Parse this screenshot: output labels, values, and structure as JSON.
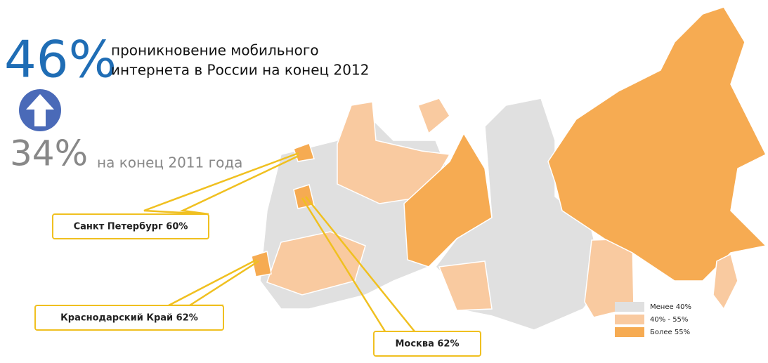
{
  "headline": {
    "value": "46%",
    "lines": [
      "проникновение мобильного",
      "интернета в России на конец 2012"
    ]
  },
  "previous": {
    "value": "34%",
    "text": "на конец 2011 года"
  },
  "callouts": [
    "Санкт Петербург 60%",
    "Краснодарский Край 62%",
    "Москва 62%"
  ],
  "legend": [
    {
      "label": "Менее 40%",
      "color": "#e0e0e0"
    },
    {
      "label": "40% - 55%",
      "color": "#f9caa0"
    },
    {
      "label": "Более 55%",
      "color": "#f6ab52"
    }
  ]
}
